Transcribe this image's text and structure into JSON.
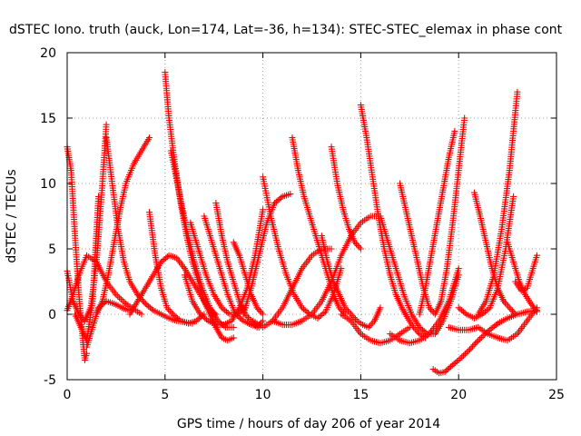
{
  "chart_data": {
    "type": "scatter",
    "title": "dSTEC Iono. truth (auck, Lon=174, Lat=-36, h=134): STEC-STEC_elemax in phase cont",
    "xlabel": "GPS time / hours of day 206 of year 2014",
    "ylabel": "dSTEC  / TECUs",
    "xlim": [
      0,
      25
    ],
    "ylim": [
      -5,
      20
    ],
    "xticks": [
      0,
      5,
      10,
      15,
      20,
      25
    ],
    "yticks": [
      -5,
      0,
      5,
      10,
      15,
      20
    ],
    "grid": true,
    "legend": "none",
    "marker": "plus",
    "series_color": "#ff0000",
    "series": [
      {
        "x": [
          0.0,
          0.2,
          0.4,
          0.6,
          0.8,
          0.9,
          1.0
        ],
        "y": [
          12.8,
          11.0,
          6.0,
          1.5,
          -2.0,
          -3.5,
          -3.0
        ]
      },
      {
        "x": [
          0.0,
          0.3,
          0.6,
          1.0,
          1.5,
          2.0,
          2.5,
          3.0,
          3.5,
          3.8
        ],
        "y": [
          0.3,
          1.5,
          3.0,
          4.5,
          4.0,
          2.5,
          1.5,
          0.8,
          0.3,
          0.0
        ]
      },
      {
        "x": [
          0.0,
          0.3,
          0.6,
          0.9,
          1.2,
          1.5,
          1.8,
          2.0
        ],
        "y": [
          3.3,
          1.0,
          0.0,
          -0.5,
          0.5,
          4.0,
          10.0,
          14.5
        ]
      },
      {
        "x": [
          0.4,
          0.7,
          1.0,
          1.3,
          1.6
        ],
        "y": [
          0.0,
          -1.0,
          -2.0,
          1.0,
          9.0
        ]
      },
      {
        "x": [
          1.0,
          1.3,
          1.6,
          2.0,
          2.4,
          2.8,
          3.2
        ],
        "y": [
          -2.5,
          -1.0,
          0.5,
          1.0,
          0.8,
          0.5,
          0.3
        ]
      },
      {
        "x": [
          1.5,
          1.8,
          2.1,
          2.4,
          2.7,
          3.0,
          3.4,
          3.8,
          4.2
        ],
        "y": [
          0.0,
          1.0,
          3.0,
          5.5,
          8.0,
          10.0,
          11.5,
          12.5,
          13.5
        ]
      },
      {
        "x": [
          2.0,
          2.3,
          2.6,
          2.9,
          3.2,
          3.6,
          4.0,
          4.4,
          4.8,
          5.2,
          5.6,
          6.0,
          6.4
        ],
        "y": [
          13.5,
          10.0,
          6.5,
          4.0,
          2.5,
          1.5,
          0.8,
          0.3,
          0.0,
          -0.3,
          -0.5,
          -0.6,
          -0.7
        ]
      },
      {
        "x": [
          3.2,
          3.6,
          4.0,
          4.4,
          4.8,
          5.2,
          5.6,
          6.0,
          6.4,
          6.8,
          7.2,
          7.6
        ],
        "y": [
          0.0,
          1.0,
          2.0,
          3.0,
          4.0,
          4.5,
          4.3,
          3.5,
          2.5,
          1.5,
          0.5,
          0.0
        ]
      },
      {
        "x": [
          4.2,
          4.5,
          4.8,
          5.1,
          5.4,
          5.8,
          6.2,
          6.6,
          7.0
        ],
        "y": [
          7.8,
          4.5,
          2.0,
          0.5,
          0.0,
          -0.5,
          -0.7,
          -0.5,
          0.0
        ]
      },
      {
        "x": [
          5.0,
          5.2,
          5.5,
          5.8,
          6.1,
          6.4,
          6.7,
          7.0,
          7.3,
          7.6,
          7.9,
          8.2,
          8.5
        ],
        "y": [
          18.5,
          15.0,
          11.5,
          8.5,
          6.0,
          4.0,
          2.5,
          1.0,
          0.0,
          -1.0,
          -1.8,
          -2.0,
          -1.8
        ]
      },
      {
        "x": [
          5.3,
          5.7,
          6.1,
          6.5,
          6.9,
          7.3,
          7.7,
          8.1,
          8.5
        ],
        "y": [
          12.5,
          9.5,
          6.5,
          4.0,
          2.0,
          0.5,
          -0.5,
          -1.0,
          -1.0
        ]
      },
      {
        "x": [
          6.0,
          6.4,
          6.8,
          7.2,
          7.6,
          8.0,
          8.4,
          8.8,
          9.2,
          9.6,
          10.0
        ],
        "y": [
          3.0,
          1.0,
          0.0,
          -0.5,
          -0.8,
          -0.8,
          -0.5,
          0.5,
          2.0,
          4.5,
          8.0
        ]
      },
      {
        "x": [
          6.3,
          6.7,
          7.1,
          7.5,
          7.9,
          8.3,
          8.7,
          9.1
        ],
        "y": [
          7.0,
          5.0,
          3.0,
          1.5,
          0.5,
          0.0,
          0.0,
          0.5
        ]
      },
      {
        "x": [
          7.0,
          7.4,
          7.8,
          8.2,
          8.6,
          9.0,
          9.4,
          9.8
        ],
        "y": [
          7.5,
          5.5,
          3.5,
          1.5,
          0.0,
          -0.5,
          -0.8,
          -1.0
        ]
      },
      {
        "x": [
          7.6,
          7.9,
          8.2,
          8.5,
          8.8,
          9.1,
          9.4,
          9.7,
          10.0
        ],
        "y": [
          8.5,
          6.0,
          4.0,
          2.5,
          1.0,
          0.0,
          -0.5,
          -1.0,
          -0.5
        ]
      },
      {
        "x": [
          8.5,
          8.8,
          9.1,
          9.4,
          9.7,
          10.0
        ],
        "y": [
          5.5,
          4.5,
          3.0,
          1.5,
          0.5,
          0.0
        ]
      },
      {
        "x": [
          10.0,
          10.4,
          10.8,
          11.2,
          11.6,
          12.0,
          12.4,
          12.8,
          13.2,
          13.6,
          14.0
        ],
        "y": [
          10.5,
          7.5,
          5.0,
          3.0,
          1.5,
          0.5,
          0.0,
          -0.3,
          0.2,
          1.5,
          3.5
        ]
      },
      {
        "x": [
          9.0,
          9.4,
          9.8,
          10.2,
          10.6,
          11.0,
          11.4
        ],
        "y": [
          0.0,
          2.0,
          4.5,
          7.0,
          8.5,
          9.0,
          9.2
        ]
      },
      {
        "x": [
          9.5,
          10.0,
          10.5,
          11.0,
          11.5,
          12.0,
          12.5,
          13.0,
          13.5
        ],
        "y": [
          -0.5,
          -1.0,
          -0.5,
          0.5,
          2.0,
          3.5,
          4.5,
          5.0,
          5.0
        ]
      },
      {
        "x": [
          11.5,
          11.8,
          12.1,
          12.4,
          12.7,
          13.0,
          13.3,
          13.6,
          13.9,
          14.2
        ],
        "y": [
          13.5,
          11.0,
          9.0,
          7.5,
          6.0,
          4.5,
          3.0,
          1.5,
          0.5,
          0.0
        ]
      },
      {
        "x": [
          10.5,
          11.0,
          11.5,
          12.0,
          12.5,
          13.0,
          13.5,
          14.0,
          14.5,
          15.0,
          15.5,
          16.0
        ],
        "y": [
          -0.5,
          -0.8,
          -0.8,
          -0.5,
          0.0,
          1.0,
          2.5,
          4.5,
          6.0,
          7.0,
          7.5,
          7.5
        ]
      },
      {
        "x": [
          13.0,
          13.3,
          13.6,
          13.9,
          14.2,
          14.5,
          14.8,
          15.1,
          15.4,
          15.7,
          16.0
        ],
        "y": [
          6.0,
          4.0,
          2.5,
          1.5,
          0.5,
          0.0,
          -0.5,
          -0.8,
          -1.0,
          -0.5,
          0.5
        ]
      },
      {
        "x": [
          13.5,
          13.8,
          14.1,
          14.4,
          14.7,
          15.0
        ],
        "y": [
          12.8,
          10.0,
          8.0,
          6.5,
          5.5,
          5.0
        ]
      },
      {
        "x": [
          15.0,
          15.3,
          15.6,
          15.9,
          16.2,
          16.5,
          16.8,
          17.1,
          17.4,
          17.7,
          18.0,
          18.3
        ],
        "y": [
          16.0,
          13.5,
          10.5,
          7.5,
          5.0,
          3.0,
          1.5,
          0.5,
          -0.3,
          -1.0,
          -1.5,
          -1.8
        ]
      },
      {
        "x": [
          14.0,
          14.5,
          15.0,
          15.5,
          16.0,
          16.5,
          17.0,
          17.5
        ],
        "y": [
          0.0,
          -0.5,
          -1.5,
          -2.0,
          -2.2,
          -2.0,
          -1.5,
          -1.0
        ]
      },
      {
        "x": [
          16.0,
          16.4,
          16.8,
          17.2,
          17.6,
          18.0,
          18.4,
          18.8,
          19.2,
          19.6,
          20.0
        ],
        "y": [
          7.5,
          5.5,
          3.5,
          1.5,
          0.0,
          -1.0,
          -1.5,
          -1.5,
          -0.5,
          1.0,
          3.0
        ]
      },
      {
        "x": [
          16.5,
          17.0,
          17.5,
          18.0,
          18.5,
          19.0,
          19.5,
          20.0
        ],
        "y": [
          -1.5,
          -2.0,
          -2.2,
          -2.0,
          -1.5,
          -0.5,
          1.0,
          3.5
        ]
      },
      {
        "x": [
          17.0,
          17.3,
          17.6,
          17.9,
          18.2,
          18.5,
          18.8,
          19.1,
          19.4,
          19.7,
          20.0,
          20.3
        ],
        "y": [
          10.0,
          8.0,
          6.0,
          4.0,
          2.0,
          0.5,
          0.0,
          1.0,
          3.5,
          7.0,
          11.0,
          15.0
        ]
      },
      {
        "x": [
          18.0,
          18.3,
          18.6,
          18.9,
          19.2,
          19.5,
          19.8
        ],
        "y": [
          0.0,
          2.0,
          4.5,
          7.0,
          9.5,
          12.0,
          14.0
        ]
      },
      {
        "x": [
          18.7,
          19.0,
          19.3,
          19.6,
          20.0,
          20.5,
          21.0,
          21.5,
          22.0,
          22.5,
          23.0,
          23.5,
          24.0
        ],
        "y": [
          -4.2,
          -4.5,
          -4.4,
          -4.0,
          -3.5,
          -2.8,
          -2.0,
          -1.3,
          -0.7,
          -0.3,
          0.0,
          0.2,
          0.3
        ]
      },
      {
        "x": [
          19.5,
          20.0,
          20.5,
          21.0,
          21.5,
          22.0,
          22.5,
          23.0,
          23.5,
          24.0
        ],
        "y": [
          -1.0,
          -1.2,
          -1.2,
          -1.0,
          -1.5,
          -1.8,
          -2.0,
          -1.5,
          -0.5,
          0.5
        ]
      },
      {
        "x": [
          20.0,
          20.4,
          20.8,
          21.2,
          21.6,
          22.0,
          22.4,
          22.8
        ],
        "y": [
          0.5,
          0.0,
          -0.3,
          0.0,
          0.5,
          2.0,
          5.0,
          9.0
        ]
      },
      {
        "x": [
          20.8,
          21.1,
          21.4,
          21.7,
          22.0,
          22.3,
          22.6,
          22.9
        ],
        "y": [
          9.3,
          7.5,
          5.5,
          3.5,
          2.0,
          1.0,
          0.5,
          0.0
        ]
      },
      {
        "x": [
          21.0,
          21.4,
          21.8,
          22.2,
          22.6,
          23.0
        ],
        "y": [
          0.0,
          1.0,
          3.0,
          6.5,
          11.0,
          17.0
        ]
      },
      {
        "x": [
          22.5,
          22.8,
          23.1,
          23.4,
          23.7,
          24.0
        ],
        "y": [
          5.5,
          4.0,
          2.5,
          1.5,
          0.8,
          0.2
        ]
      },
      {
        "x": [
          22.9,
          23.2,
          23.5,
          23.8,
          24.0
        ],
        "y": [
          2.5,
          1.8,
          2.0,
          3.5,
          4.5
        ]
      }
    ]
  }
}
